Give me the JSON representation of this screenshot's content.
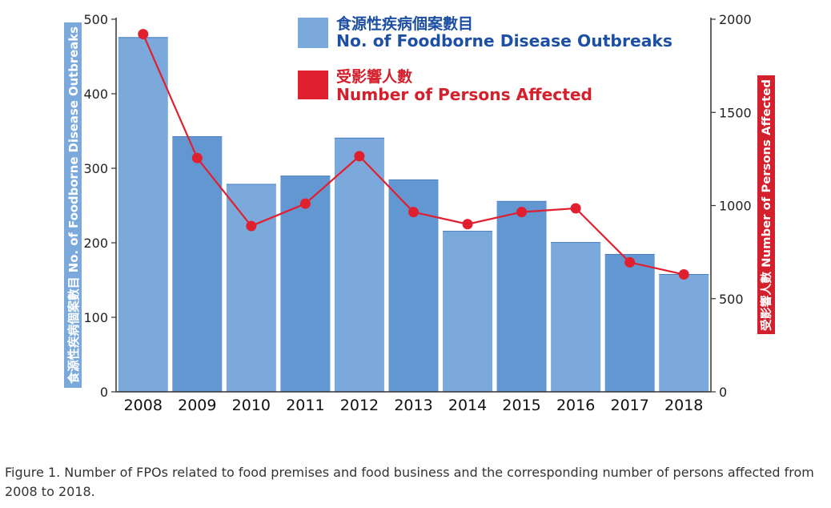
{
  "chart_data": {
    "type": "bar",
    "categories": [
      "2008",
      "2009",
      "2010",
      "2011",
      "2012",
      "2013",
      "2014",
      "2015",
      "2016",
      "2017",
      "2018"
    ],
    "series": [
      {
        "name_zh": "食源性疾病個案數目",
        "name": "No. of Foodborne Disease Outbreaks",
        "type": "bar",
        "axis": "left",
        "values": [
          476,
          343,
          279,
          290,
          341,
          285,
          216,
          256,
          201,
          185,
          158
        ]
      },
      {
        "name_zh": "受影響人數",
        "name": "Number of Persons Affected",
        "type": "line",
        "axis": "right",
        "values": [
          1920,
          1255,
          890,
          1010,
          1265,
          965,
          900,
          965,
          985,
          695,
          630
        ]
      }
    ],
    "left_axis": {
      "label": "食源性疾病個案數目 No. of Foodborne Disease Outbreaks",
      "ylim": [
        0,
        500
      ],
      "ticks": [
        "0",
        "100",
        "200",
        "300",
        "400",
        "500"
      ]
    },
    "right_axis": {
      "label": "受影響人數 Number of Persons Affected",
      "ylim": [
        0,
        2000
      ],
      "ticks": [
        "0",
        "500",
        "1000",
        "1500",
        "2000"
      ]
    },
    "legend_position": "top-center",
    "grid": false,
    "colors": {
      "bar_light": "#7ba9dc",
      "bar_dark": "#6397d2",
      "line": "#e0202e",
      "legend_text_blue": "#1d4fa3",
      "legend_text_red": "#d4202c"
    }
  },
  "caption": "Figure 1. Number of FPOs related to food premises and food business and the corresponding number of persons affected from 2008 to 2018."
}
